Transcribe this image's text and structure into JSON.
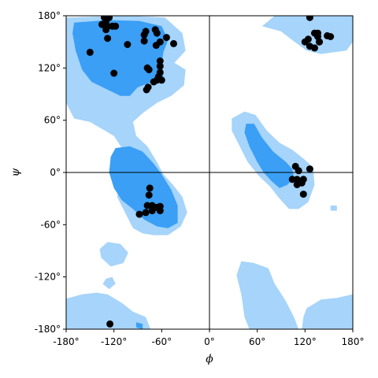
{
  "chart_data": {
    "type": "scatter",
    "title": "",
    "xlabel": "ϕ",
    "ylabel": "ψ",
    "xlim": [
      -180,
      180
    ],
    "ylim": [
      -180,
      180
    ],
    "x_ticks": [
      -180,
      -120,
      -60,
      0,
      60,
      120,
      180
    ],
    "y_ticks": [
      -180,
      -120,
      -60,
      0,
      60,
      120,
      180
    ],
    "x_tick_labels": [
      "-180°",
      "-120°",
      "-60°",
      "0°",
      "60°",
      "120°",
      "180°"
    ],
    "y_tick_labels": [
      "-180°",
      "-120°",
      "-60°",
      "0°",
      "60°",
      "120°",
      "180°"
    ],
    "reference_lines": {
      "x": 0,
      "y": 0
    },
    "colors": {
      "favoured_region": "#3a9ff5",
      "allowed_region": "#a6d4fa",
      "points": "#000000",
      "axis": "#000000"
    },
    "regions": {
      "favoured": [
        [
          [
            -170,
            172
          ],
          [
            -128,
            175
          ],
          [
            -88,
            174
          ],
          [
            -60,
            168
          ],
          [
            -52,
            152
          ],
          [
            -58,
            138
          ],
          [
            -60,
            124
          ],
          [
            -58,
            110
          ],
          [
            -72,
            104
          ],
          [
            -90,
            98
          ],
          [
            -100,
            88
          ],
          [
            -112,
            88
          ],
          [
            -130,
            96
          ],
          [
            -148,
            104
          ],
          [
            -160,
            118
          ],
          [
            -168,
            140
          ],
          [
            -172,
            160
          ]
        ],
        [
          [
            -118,
            28
          ],
          [
            -100,
            30
          ],
          [
            -84,
            24
          ],
          [
            -70,
            10
          ],
          [
            -60,
            -2
          ],
          [
            -48,
            -20
          ],
          [
            -40,
            -38
          ],
          [
            -40,
            -58
          ],
          [
            -52,
            -64
          ],
          [
            -66,
            -62
          ],
          [
            -82,
            -54
          ],
          [
            -96,
            -42
          ],
          [
            -110,
            -32
          ],
          [
            -120,
            -18
          ],
          [
            -126,
            0
          ],
          [
            -124,
            18
          ]
        ],
        [
          [
            46,
            56
          ],
          [
            56,
            56
          ],
          [
            66,
            40
          ],
          [
            80,
            24
          ],
          [
            96,
            12
          ],
          [
            104,
            4
          ],
          [
            106,
            -6
          ],
          [
            98,
            -14
          ],
          [
            88,
            -18
          ],
          [
            78,
            -10
          ],
          [
            68,
            0
          ],
          [
            60,
            12
          ],
          [
            50,
            30
          ],
          [
            44,
            46
          ]
        ],
        [
          [
            -92,
            -178
          ],
          [
            -84,
            -180
          ],
          [
            -84,
            -174
          ],
          [
            -92,
            -172
          ]
        ]
      ],
      "allowed": [
        [
          [
            -180,
            178
          ],
          [
            -180,
            80
          ],
          [
            -170,
            62
          ],
          [
            -150,
            58
          ],
          [
            -135,
            50
          ],
          [
            -120,
            42
          ],
          [
            -110,
            28
          ],
          [
            -104,
            6
          ],
          [
            -112,
            -10
          ],
          [
            -116,
            -28
          ],
          [
            -106,
            -46
          ],
          [
            -96,
            -64
          ],
          [
            -84,
            -70
          ],
          [
            -70,
            -72
          ],
          [
            -52,
            -72
          ],
          [
            -36,
            -62
          ],
          [
            -28,
            -46
          ],
          [
            -34,
            -28
          ],
          [
            -46,
            -14
          ],
          [
            -58,
            -2
          ],
          [
            -66,
            12
          ],
          [
            -78,
            30
          ],
          [
            -92,
            42
          ],
          [
            -96,
            58
          ],
          [
            -84,
            68
          ],
          [
            -66,
            80
          ],
          [
            -48,
            88
          ],
          [
            -32,
            100
          ],
          [
            -30,
            118
          ],
          [
            -44,
            126
          ],
          [
            -30,
            140
          ],
          [
            -34,
            160
          ],
          [
            -56,
            178
          ],
          [
            -100,
            180
          ]
        ],
        [
          [
            -128,
            -80
          ],
          [
            -112,
            -82
          ],
          [
            -102,
            -92
          ],
          [
            -108,
            -104
          ],
          [
            -124,
            -108
          ],
          [
            -136,
            -98
          ],
          [
            -138,
            -88
          ]
        ],
        [
          [
            -180,
            -145
          ],
          [
            -160,
            -140
          ],
          [
            -142,
            -138
          ],
          [
            -128,
            -140
          ],
          [
            -110,
            -150
          ],
          [
            -96,
            -160
          ],
          [
            -80,
            -166
          ],
          [
            -74,
            -180
          ],
          [
            -180,
            -180
          ]
        ],
        [
          [
            -130,
            -122
          ],
          [
            -122,
            -120
          ],
          [
            -118,
            -128
          ],
          [
            -126,
            -134
          ],
          [
            -134,
            -128
          ]
        ],
        [
          [
            28,
            62
          ],
          [
            44,
            70
          ],
          [
            58,
            66
          ],
          [
            72,
            48
          ],
          [
            88,
            34
          ],
          [
            104,
            26
          ],
          [
            118,
            16
          ],
          [
            130,
            6
          ],
          [
            132,
            -14
          ],
          [
            124,
            -34
          ],
          [
            112,
            -42
          ],
          [
            100,
            -42
          ],
          [
            88,
            -30
          ],
          [
            76,
            -16
          ],
          [
            62,
            -4
          ],
          [
            48,
            12
          ],
          [
            38,
            30
          ],
          [
            28,
            48
          ]
        ],
        [
          [
            66,
            168
          ],
          [
            82,
            180
          ],
          [
            180,
            180
          ],
          [
            180,
            150
          ],
          [
            172,
            140
          ],
          [
            156,
            138
          ],
          [
            140,
            136
          ],
          [
            122,
            140
          ],
          [
            104,
            152
          ],
          [
            90,
            162
          ],
          [
            74,
            166
          ]
        ],
        [
          [
            40,
            -102
          ],
          [
            56,
            -104
          ],
          [
            74,
            -110
          ],
          [
            82,
            -128
          ],
          [
            96,
            -148
          ],
          [
            106,
            -166
          ],
          [
            112,
            -180
          ],
          [
            50,
            -180
          ],
          [
            44,
            -166
          ],
          [
            40,
            -140
          ],
          [
            34,
            -118
          ]
        ],
        [
          [
            122,
            -156
          ],
          [
            140,
            -146
          ],
          [
            160,
            -144
          ],
          [
            180,
            -140
          ],
          [
            180,
            -180
          ],
          [
            116,
            -180
          ],
          [
            118,
            -166
          ]
        ],
        [
          [
            152,
            -38
          ],
          [
            160,
            -38
          ],
          [
            160,
            -44
          ],
          [
            152,
            -44
          ]
        ]
      ]
    },
    "points": [
      [
        -132,
        178
      ],
      [
        -126,
        178
      ],
      [
        -130,
        174
      ],
      [
        -135,
        170
      ],
      [
        -128,
        168
      ],
      [
        -122,
        168
      ],
      [
        -118,
        168
      ],
      [
        -130,
        164
      ],
      [
        -128,
        154
      ],
      [
        -150,
        138
      ],
      [
        -120,
        114
      ],
      [
        -103,
        147
      ],
      [
        -80,
        162
      ],
      [
        -82,
        158
      ],
      [
        -68,
        164
      ],
      [
        -66,
        160
      ],
      [
        -82,
        151
      ],
      [
        -67,
        146
      ],
      [
        -62,
        150
      ],
      [
        -54,
        155
      ],
      [
        -45,
        148
      ],
      [
        -62,
        128
      ],
      [
        -62,
        122
      ],
      [
        -62,
        115
      ],
      [
        -64,
        110
      ],
      [
        -60,
        106
      ],
      [
        -66,
        106
      ],
      [
        -70,
        104
      ],
      [
        -76,
        118
      ],
      [
        -78,
        120
      ],
      [
        -79,
        95
      ],
      [
        -77,
        98
      ],
      [
        -75,
        -18
      ],
      [
        -76,
        -26
      ],
      [
        -78,
        -38
      ],
      [
        -72,
        -38
      ],
      [
        -66,
        -40
      ],
      [
        -62,
        -44
      ],
      [
        -62,
        -39
      ],
      [
        -72,
        -44
      ],
      [
        -80,
        -46
      ],
      [
        -88,
        -48
      ],
      [
        108,
        7
      ],
      [
        112,
        2
      ],
      [
        104,
        -8
      ],
      [
        110,
        -8
      ],
      [
        114,
        -10
      ],
      [
        118,
        -8
      ],
      [
        110,
        -14
      ],
      [
        116,
        -12
      ],
      [
        118,
        -25
      ],
      [
        126,
        4
      ],
      [
        126,
        178
      ],
      [
        132,
        160
      ],
      [
        136,
        156
      ],
      [
        138,
        150
      ],
      [
        148,
        157
      ],
      [
        152,
        156
      ],
      [
        120,
        150
      ],
      [
        124,
        153
      ],
      [
        126,
        145
      ],
      [
        132,
        143
      ],
      [
        138,
        150
      ],
      [
        136,
        160
      ],
      [
        -125,
        -174
      ]
    ]
  }
}
